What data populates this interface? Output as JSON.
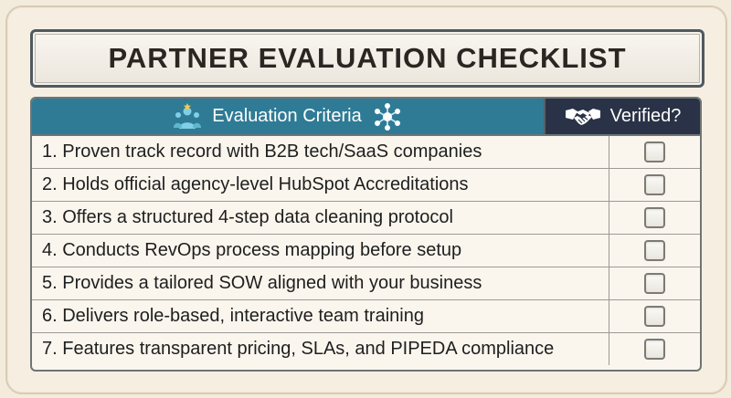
{
  "title": "PARTNER EVALUATION CHECKLIST",
  "header": {
    "criteria_label": "Evaluation Criteria",
    "verified_label": "Verified?",
    "icons": [
      "team-award-icon",
      "network-nodes-icon",
      "handshake-icon"
    ]
  },
  "colors": {
    "criteria_header": "#2f7b95",
    "verified_header": "#2a3247",
    "background": "#f3ecdd"
  },
  "rows": [
    {
      "text": "1. Proven track record with B2B tech/SaaS companies",
      "checked": false
    },
    {
      "text": "2. Holds official agency-level HubSpot Accreditations",
      "checked": false
    },
    {
      "text": "3. Offers a structured 4-step data cleaning protocol",
      "checked": false
    },
    {
      "text": "4. Conducts RevOps process mapping before setup",
      "checked": false
    },
    {
      "text": "5. Provides a tailored SOW aligned with your business",
      "checked": false
    },
    {
      "text": "6. Delivers role-based, interactive team training",
      "checked": false
    },
    {
      "text": "7. Features transparent pricing, SLAs, and PIPEDA compliance",
      "checked": false
    }
  ]
}
